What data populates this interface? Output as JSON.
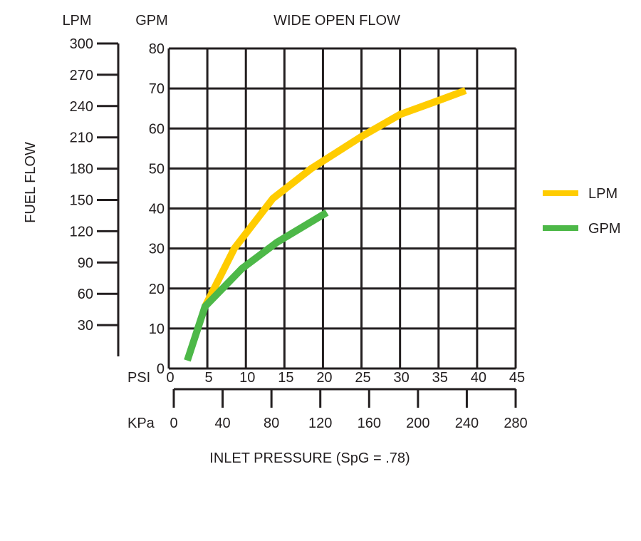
{
  "chart_data": {
    "type": "line",
    "title": "WIDE OPEN FLOW",
    "ylabel": "FUEL FLOW",
    "xlabel": "INLET PRESSURE (SpG = .78)",
    "left_axis": {
      "unit": "LPM",
      "ticks": [
        "300",
        "270",
        "240",
        "210",
        "180",
        "150",
        "120",
        "90",
        "60",
        "30"
      ],
      "values": [
        300,
        270,
        240,
        210,
        180,
        150,
        120,
        90,
        60,
        30
      ]
    },
    "right_axis": {
      "unit": "GPM",
      "ticks": [
        "80",
        "70",
        "60",
        "50",
        "40",
        "30",
        "20",
        "10",
        "0"
      ],
      "values": [
        80,
        70,
        60,
        50,
        40,
        30,
        20,
        10,
        0
      ],
      "ylim": [
        0,
        80
      ]
    },
    "x_axis": {
      "unit": "PSI",
      "ticks": [
        "0",
        "5",
        "10",
        "15",
        "20",
        "25",
        "30",
        "35",
        "40",
        "45"
      ],
      "values": [
        0,
        5,
        10,
        15,
        20,
        25,
        30,
        35,
        40,
        45
      ],
      "xlim": [
        0,
        45
      ]
    },
    "x2_axis": {
      "unit": "KPa",
      "ticks": [
        "0",
        "40",
        "80",
        "120",
        "160",
        "200",
        "240",
        "280"
      ],
      "values": [
        0,
        40,
        80,
        120,
        160,
        200,
        240,
        280
      ]
    },
    "grid": true,
    "legend": "right",
    "series": [
      {
        "name": "LPM",
        "color": "#ffcc00",
        "x": [
          4.7,
          8.5,
          13.5,
          18.5,
          25,
          30,
          35,
          38.5
        ],
        "y": [
          15.5,
          30,
          42.5,
          50,
          58,
          63.5,
          67,
          69.5
        ]
      },
      {
        "name": "GPM",
        "color": "#4db848",
        "x": [
          2.4,
          4.7,
          9.5,
          14,
          20.5
        ],
        "y": [
          2,
          15.5,
          25,
          31.5,
          39
        ]
      }
    ]
  }
}
